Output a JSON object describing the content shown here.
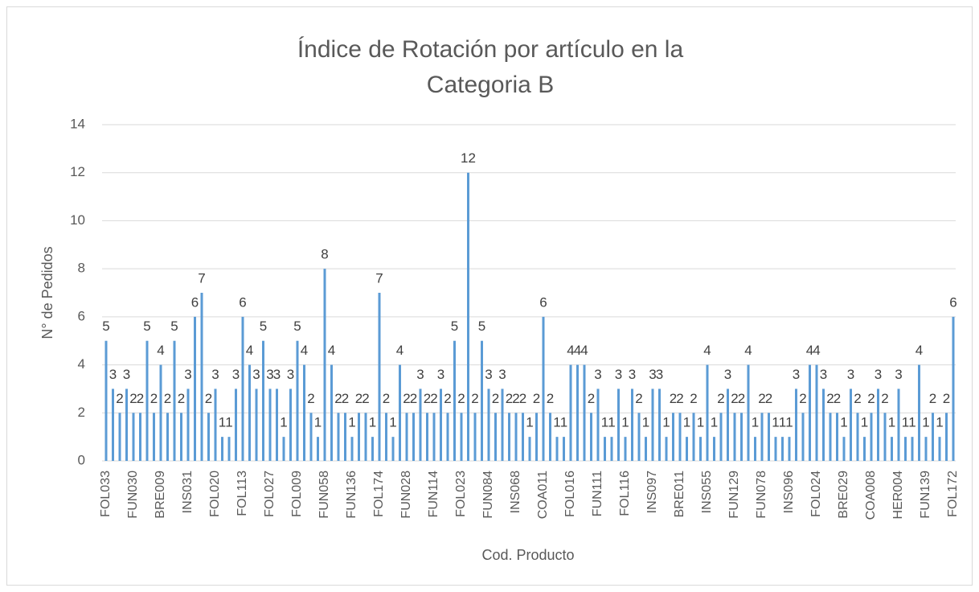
{
  "chart_data": {
    "type": "bar",
    "title": [
      "Índice de Rotación por artículo en la",
      "Categoria B"
    ],
    "x_label": "Cod. Producto",
    "y_label": "N° de Pedidos",
    "color": "#5b9bd5",
    "grid": true,
    "ylim": [
      0,
      14
    ],
    "yticks": [
      0,
      2,
      4,
      6,
      8,
      10,
      12,
      14
    ],
    "categories": [
      "FOL033",
      null,
      null,
      null,
      "FUN030",
      null,
      null,
      null,
      "BRE009",
      null,
      null,
      null,
      "INS031",
      null,
      null,
      null,
      "FOL020",
      null,
      null,
      null,
      "FOL113",
      null,
      null,
      null,
      "FOL027",
      null,
      null,
      null,
      "FOL009",
      null,
      null,
      null,
      "FUN058",
      null,
      null,
      null,
      "FUN136",
      null,
      null,
      null,
      "FOL174",
      null,
      null,
      null,
      "FUN028",
      null,
      null,
      null,
      "FUN114",
      null,
      null,
      null,
      "FOL023",
      null,
      null,
      null,
      "FUN084",
      null,
      null,
      null,
      "INS068",
      null,
      null,
      null,
      "COA011",
      null,
      null,
      null,
      "FOL016",
      null,
      null,
      null,
      "FUN111",
      null,
      null,
      null,
      "FOL116",
      null,
      null,
      null,
      "INS097",
      null,
      null,
      null,
      "BRE011",
      null,
      null,
      null,
      "INS055",
      null,
      null,
      null,
      "FUN129",
      null,
      null,
      null,
      "FUN078",
      null,
      null,
      null,
      "INS096",
      null,
      null,
      null,
      "FOL024",
      null,
      null,
      null,
      "BRE029",
      null,
      null,
      null,
      "COA008",
      null,
      null,
      null,
      "HER004",
      null,
      null,
      null,
      "FUN139",
      null,
      null,
      null,
      "FOL172"
    ],
    "values": [
      5,
      3,
      2,
      3,
      2,
      2,
      5,
      2,
      4,
      2,
      5,
      2,
      3,
      6,
      7,
      2,
      3,
      1,
      1,
      3,
      6,
      4,
      3,
      5,
      3,
      3,
      1,
      3,
      5,
      4,
      2,
      1,
      8,
      4,
      2,
      2,
      1,
      2,
      2,
      1,
      7,
      2,
      1,
      4,
      2,
      2,
      3,
      2,
      2,
      3,
      2,
      5,
      2,
      12,
      2,
      5,
      3,
      2,
      3,
      2,
      2,
      2,
      1,
      2,
      6,
      2,
      1,
      1,
      4,
      4,
      4,
      2,
      3,
      1,
      1,
      3,
      1,
      3,
      2,
      1,
      3,
      3,
      1,
      2,
      2,
      1,
      2,
      1,
      4,
      1,
      2,
      3,
      2,
      2,
      4,
      1,
      2,
      2,
      1,
      1,
      1,
      3,
      2,
      4,
      4,
      3,
      2,
      2,
      1,
      3,
      2,
      1,
      2,
      3,
      2,
      1,
      3,
      1,
      1,
      4,
      1,
      2,
      1,
      2,
      6
    ]
  }
}
